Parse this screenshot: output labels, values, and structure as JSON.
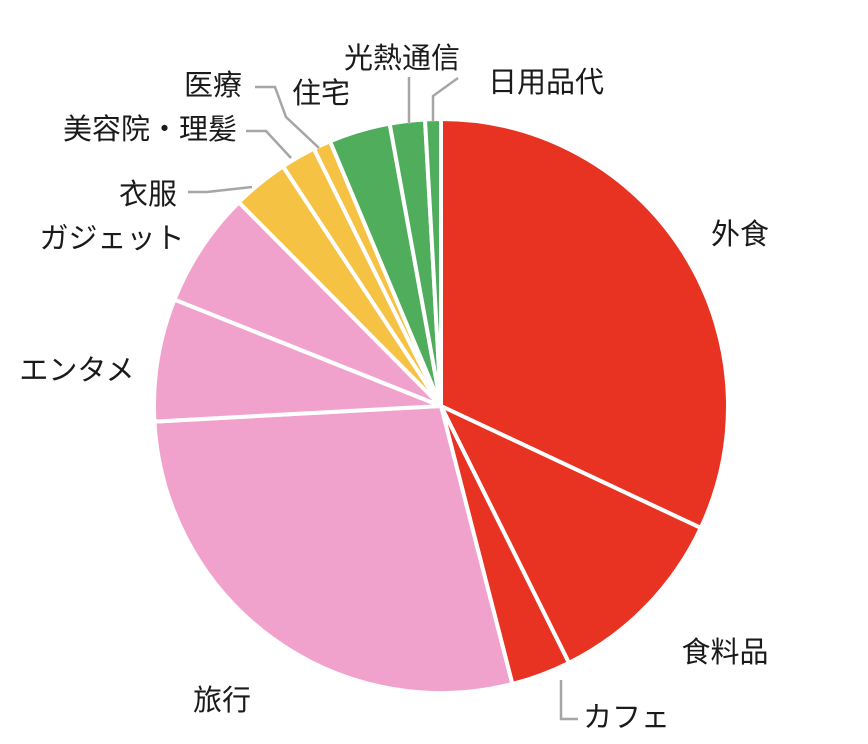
{
  "chart_data": {
    "type": "pie",
    "title": "",
    "start_angle_deg": 0,
    "direction": "clockwise",
    "slices": [
      {
        "label": "外食",
        "value": 32.4,
        "color": "#e83323"
      },
      {
        "label": "食料品",
        "value": 10.8,
        "color": "#e83323"
      },
      {
        "label": "カフェ",
        "value": 3.4,
        "color": "#e83323"
      },
      {
        "label": "旅行",
        "value": 28.5,
        "color": "#f1a2cc"
      },
      {
        "label": "エンタメ",
        "value": 7.0,
        "color": "#f1a2cc"
      },
      {
        "label": "ガジェット",
        "value": 6.6,
        "color": "#f1a2cc"
      },
      {
        "label": "衣服",
        "value": 3.2,
        "color": "#f5c244"
      },
      {
        "label": "美容院・理髪",
        "value": 2.0,
        "color": "#f5c244"
      },
      {
        "label": "医療",
        "value": 1.0,
        "color": "#f5c244"
      },
      {
        "label": "住宅",
        "value": 3.5,
        "color": "#4fad5b"
      },
      {
        "label": "光熱通信",
        "value": 2.0,
        "color": "#4fad5b"
      },
      {
        "label": "日用品代",
        "value": 0.9,
        "color": "#4fad5b"
      }
    ]
  }
}
